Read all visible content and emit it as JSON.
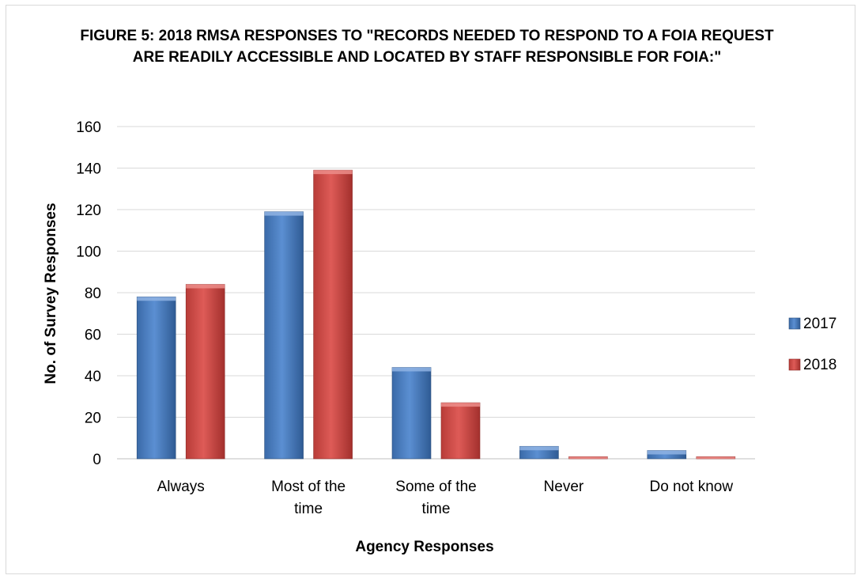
{
  "chart_data": {
    "type": "bar",
    "title": "FIGURE 5: 2018 RMSA RESPONSES TO \"RECORDS NEEDED TO RESPOND TO A FOIA REQUEST ARE READILY ACCESSIBLE AND LOCATED BY STAFF RESPONSIBLE FOR FOIA:\"",
    "categories": [
      [
        "Always"
      ],
      [
        "Most of the",
        "time"
      ],
      [
        "Some of the",
        "time"
      ],
      [
        "Never"
      ],
      [
        "Do not know"
      ]
    ],
    "series": [
      {
        "name": "2017",
        "values": [
          78,
          119,
          44,
          6,
          4
        ],
        "color": "#4f81bd"
      },
      {
        "name": "2018",
        "values": [
          84,
          139,
          27,
          1,
          1
        ],
        "color": "#c0504d"
      }
    ],
    "xlabel": "Agency  Responses",
    "ylabel": "No. of Survey Responses",
    "ylim": [
      0,
      160
    ],
    "yticks": [
      0,
      20,
      40,
      60,
      80,
      100,
      120,
      140,
      160
    ],
    "grid": true,
    "legend_position": "right"
  }
}
